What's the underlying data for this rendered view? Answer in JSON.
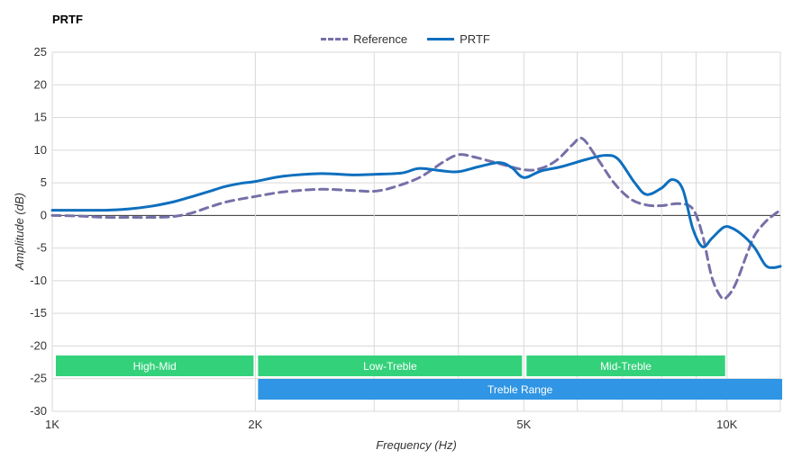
{
  "chart_data": {
    "type": "line",
    "title": "PRTF",
    "xlabel": "Frequency (Hz)",
    "ylabel": "Amplitude (dB)",
    "x_scale": "log",
    "xlim": [
      1000,
      12000
    ],
    "ylim": [
      -30,
      25
    ],
    "x_ticks": [
      {
        "value": 1000,
        "label": "1K"
      },
      {
        "value": 2000,
        "label": "2K"
      },
      {
        "value": 5000,
        "label": "5K"
      },
      {
        "value": 10000,
        "label": "10K"
      }
    ],
    "x_minor_gridlines": [
      3000,
      4000,
      6000,
      7000,
      8000,
      9000
    ],
    "y_ticks": [
      25,
      20,
      15,
      10,
      5,
      0,
      -5,
      -10,
      -15,
      -20,
      -25,
      -30
    ],
    "grid": true,
    "legend_position": "top",
    "series": [
      {
        "name": "Reference",
        "color": "#7570a8",
        "style": "dashed",
        "points": [
          [
            1000,
            0.0
          ],
          [
            1100,
            -0.1
          ],
          [
            1200,
            -0.3
          ],
          [
            1300,
            -0.3
          ],
          [
            1400,
            -0.3
          ],
          [
            1500,
            -0.2
          ],
          [
            1600,
            0.3
          ],
          [
            1700,
            1.2
          ],
          [
            1800,
            2.0
          ],
          [
            1900,
            2.5
          ],
          [
            2000,
            2.9
          ],
          [
            2200,
            3.6
          ],
          [
            2500,
            4.0
          ],
          [
            2800,
            3.8
          ],
          [
            3000,
            3.7
          ],
          [
            3200,
            4.3
          ],
          [
            3500,
            5.8
          ],
          [
            3800,
            8.2
          ],
          [
            4000,
            9.3
          ],
          [
            4200,
            9.0
          ],
          [
            4500,
            8.2
          ],
          [
            5000,
            7.0
          ],
          [
            5300,
            7.2
          ],
          [
            5600,
            8.5
          ],
          [
            5900,
            10.8
          ],
          [
            6100,
            11.8
          ],
          [
            6400,
            9.0
          ],
          [
            6800,
            5.0
          ],
          [
            7200,
            2.5
          ],
          [
            7600,
            1.6
          ],
          [
            8000,
            1.5
          ],
          [
            8500,
            1.8
          ],
          [
            8900,
            1.0
          ],
          [
            9200,
            -3.0
          ],
          [
            9500,
            -9.5
          ],
          [
            9800,
            -12.5
          ],
          [
            10000,
            -12.5
          ],
          [
            10300,
            -10.5
          ],
          [
            10700,
            -6.0
          ],
          [
            11000,
            -3.0
          ],
          [
            11400,
            -1.0
          ],
          [
            11700,
            0.0
          ],
          [
            12000,
            0.8
          ]
        ]
      },
      {
        "name": "PRTF",
        "color": "#0e6fbe",
        "style": "solid",
        "points": [
          [
            1000,
            0.8
          ],
          [
            1100,
            0.8
          ],
          [
            1200,
            0.8
          ],
          [
            1300,
            1.0
          ],
          [
            1400,
            1.4
          ],
          [
            1500,
            2.0
          ],
          [
            1600,
            2.8
          ],
          [
            1700,
            3.6
          ],
          [
            1800,
            4.4
          ],
          [
            1900,
            4.9
          ],
          [
            2000,
            5.2
          ],
          [
            2200,
            6.0
          ],
          [
            2500,
            6.4
          ],
          [
            2800,
            6.2
          ],
          [
            3000,
            6.3
          ],
          [
            3300,
            6.5
          ],
          [
            3500,
            7.2
          ],
          [
            3800,
            6.8
          ],
          [
            4000,
            6.7
          ],
          [
            4300,
            7.5
          ],
          [
            4600,
            8.1
          ],
          [
            4800,
            7.3
          ],
          [
            5000,
            5.8
          ],
          [
            5300,
            6.8
          ],
          [
            5700,
            7.5
          ],
          [
            6200,
            8.6
          ],
          [
            6600,
            9.2
          ],
          [
            6900,
            8.6
          ],
          [
            7300,
            5.0
          ],
          [
            7600,
            3.2
          ],
          [
            8000,
            4.2
          ],
          [
            8300,
            5.5
          ],
          [
            8600,
            4.0
          ],
          [
            8900,
            -2.0
          ],
          [
            9200,
            -4.8
          ],
          [
            9500,
            -3.5
          ],
          [
            9900,
            -1.8
          ],
          [
            10200,
            -2.0
          ],
          [
            10600,
            -3.2
          ],
          [
            11000,
            -5.0
          ],
          [
            11400,
            -7.6
          ],
          [
            11700,
            -8.0
          ],
          [
            12000,
            -7.8
          ]
        ]
      }
    ],
    "ranges": [
      {
        "label": "High-Mid",
        "from": 1000,
        "to": 2000,
        "row": 0,
        "color": "#33d17a"
      },
      {
        "label": "Low-Treble",
        "from": 2000,
        "to": 5000,
        "row": 0,
        "color": "#33d17a"
      },
      {
        "label": "Mid-Treble",
        "from": 5000,
        "to": 10000,
        "row": 0,
        "color": "#33d17a"
      },
      {
        "label": "Treble Range",
        "from": 2000,
        "to": 12000,
        "row": 1,
        "color": "#2f95e4"
      }
    ]
  }
}
